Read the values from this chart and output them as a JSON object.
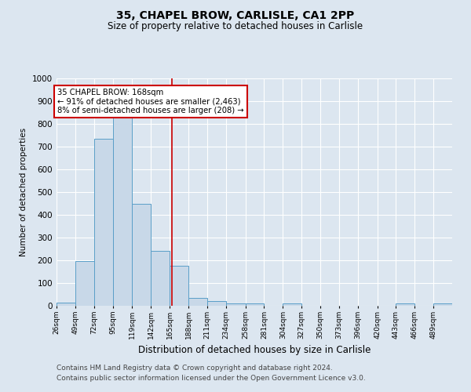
{
  "title": "35, CHAPEL BROW, CARLISLE, CA1 2PP",
  "subtitle": "Size of property relative to detached houses in Carlisle",
  "xlabel": "Distribution of detached houses by size in Carlisle",
  "ylabel": "Number of detached properties",
  "bin_labels": [
    "26sqm",
    "49sqm",
    "72sqm",
    "95sqm",
    "119sqm",
    "142sqm",
    "165sqm",
    "188sqm",
    "211sqm",
    "234sqm",
    "258sqm",
    "281sqm",
    "304sqm",
    "327sqm",
    "350sqm",
    "373sqm",
    "396sqm",
    "420sqm",
    "443sqm",
    "466sqm",
    "489sqm"
  ],
  "bin_edges": [
    26,
    49,
    72,
    95,
    119,
    142,
    165,
    188,
    211,
    234,
    258,
    281,
    304,
    327,
    350,
    373,
    396,
    420,
    443,
    466,
    489,
    512
  ],
  "bar_heights": [
    15,
    195,
    735,
    835,
    450,
    240,
    175,
    35,
    20,
    10,
    10,
    0,
    10,
    0,
    0,
    0,
    0,
    0,
    10,
    0,
    10
  ],
  "bar_color": "#c8d8e8",
  "bar_edge_color": "#5a9fc8",
  "vline_x": 168,
  "vline_color": "#cc0000",
  "annotation_text": "35 CHAPEL BROW: 168sqm\n← 91% of detached houses are smaller (2,463)\n8% of semi-detached houses are larger (208) →",
  "annotation_box_color": "#cc0000",
  "ylim": [
    0,
    1000
  ],
  "background_color": "#dce6f0",
  "plot_bg_color": "#dce6f0",
  "grid_color": "#ffffff",
  "footer_line1": "Contains HM Land Registry data © Crown copyright and database right 2024.",
  "footer_line2": "Contains public sector information licensed under the Open Government Licence v3.0."
}
